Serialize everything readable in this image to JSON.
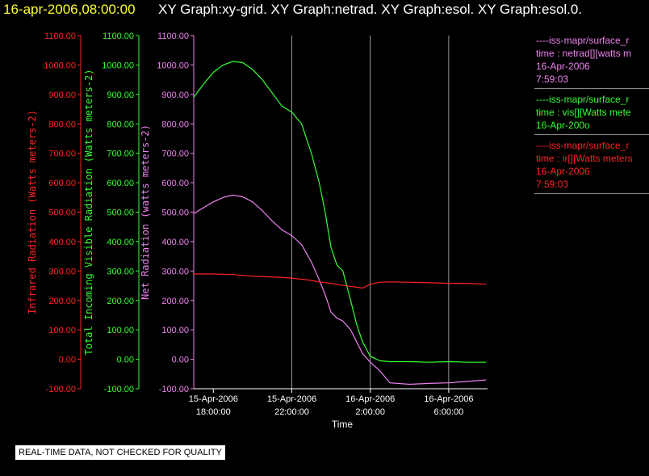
{
  "header": {
    "date": "16-apr-2006,08:00:00",
    "graphs": "XY Graph:xy-grid.  XY Graph:netrad.  XY Graph:esol.  XY Graph:esol.0."
  },
  "legend": [
    {
      "lines": [
        "----iss-mapr/surface_r",
        "time : netrad[][watts m",
        "16-Apr-2006",
        "7:59:03"
      ],
      "color": "#ee82ee"
    },
    {
      "lines": [
        "----iss-mapr/surface_r",
        "time : vis[][Watts mete",
        "16-Apr-200o"
      ],
      "color": "#33ff33"
    },
    {
      "lines": [
        "----iss-mapr/surface_r",
        "time : ir[][Watts meters",
        "16-Apr-2006",
        "7:59:03"
      ],
      "color": "#ff2222"
    }
  ],
  "quality_note": "REAL-TIME DATA, NOT CHECKED FOR QUALITY",
  "chart_data": {
    "type": "line",
    "xlabel": "Time",
    "x_range_hours": [
      -7.0,
      7.98
    ],
    "x_ticks": [
      {
        "h": -6,
        "lines": [
          "15-Apr-2006",
          "18:00:00"
        ]
      },
      {
        "h": -2,
        "lines": [
          "15-Apr-2006",
          "22:00:00"
        ]
      },
      {
        "h": 2,
        "lines": [
          "16-Apr-2006",
          "2:00:00"
        ]
      },
      {
        "h": 6,
        "lines": [
          "16-Apr-2006",
          "6:00:00"
        ]
      }
    ],
    "gridlines_hours": [
      -2,
      2,
      6
    ],
    "y_range": [
      -100,
      1100
    ],
    "y_ticks": [
      "-100.00",
      "0.00",
      "100.00",
      "200.00",
      "300.00",
      "400.00",
      "500.00",
      "600.00",
      "700.00",
      "800.00",
      "900.00",
      "1000.00",
      "1100.00"
    ],
    "axes": [
      {
        "label": "Infrared Radiation (Watts meters-2)",
        "color": "#ff2222"
      },
      {
        "label": "Total Incoming Visible Radiation (Watts meters-2)",
        "color": "#33ff33"
      },
      {
        "label": "Net Radiation (watts meters-2)",
        "color": "#ee82ee"
      }
    ],
    "series": [
      {
        "name": "vis",
        "color": "#33ff33",
        "x": [
          -7.0,
          -6.5,
          -6.0,
          -5.5,
          -5.0,
          -4.5,
          -4.0,
          -3.5,
          -3.0,
          -2.5,
          -2.0,
          -1.5,
          -1.0,
          -0.6,
          -0.3,
          0.0,
          0.3,
          0.6,
          1.0,
          1.3,
          1.6,
          2.0,
          2.5,
          3.0,
          4.0,
          5.0,
          6.0,
          7.0,
          7.9
        ],
        "y": [
          890,
          935,
          975,
          1000,
          1012,
          1008,
          985,
          950,
          905,
          860,
          840,
          800,
          700,
          600,
          500,
          380,
          320,
          300,
          200,
          120,
          60,
          10,
          -5,
          -8,
          -8,
          -10,
          -8,
          -10,
          -10
        ]
      },
      {
        "name": "netrad",
        "color": "#ee82ee",
        "x": [
          -7.0,
          -6.5,
          -6.0,
          -5.5,
          -5.0,
          -4.5,
          -4.0,
          -3.5,
          -3.0,
          -2.5,
          -2.0,
          -1.5,
          -1.0,
          -0.6,
          -0.3,
          0.0,
          0.3,
          0.6,
          1.0,
          1.3,
          1.6,
          2.0,
          2.5,
          3.0,
          4.0,
          5.0,
          6.0,
          7.0,
          7.9
        ],
        "y": [
          495,
          515,
          535,
          550,
          558,
          552,
          535,
          505,
          470,
          440,
          420,
          390,
          330,
          270,
          220,
          160,
          140,
          130,
          100,
          60,
          20,
          -10,
          -40,
          -80,
          -85,
          -82,
          -80,
          -75,
          -70
        ]
      },
      {
        "name": "ir",
        "color": "#ff2222",
        "x": [
          -7.0,
          -6.0,
          -5.0,
          -4.0,
          -3.0,
          -2.0,
          -1.5,
          -1.0,
          -0.5,
          0.0,
          0.5,
          1.0,
          1.3,
          1.6,
          2.0,
          2.5,
          3.0,
          4.0,
          5.0,
          6.0,
          7.0,
          7.9
        ],
        "y": [
          290,
          290,
          288,
          282,
          280,
          276,
          272,
          268,
          262,
          258,
          252,
          248,
          245,
          242,
          255,
          262,
          263,
          262,
          260,
          258,
          258,
          255
        ]
      }
    ]
  }
}
